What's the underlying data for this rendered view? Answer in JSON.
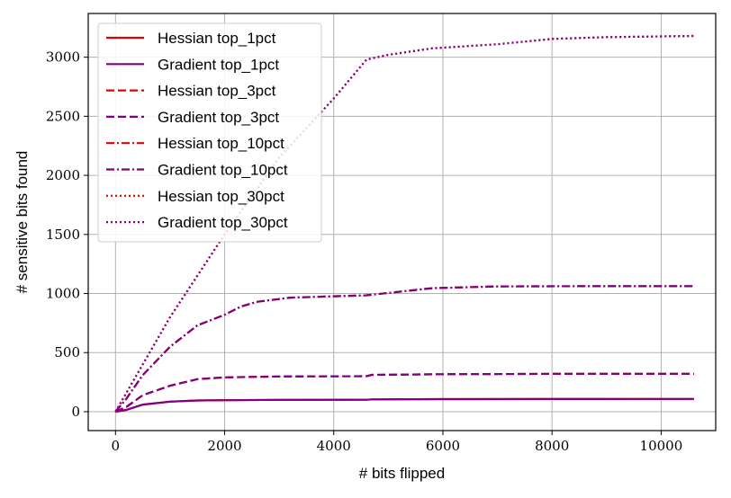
{
  "chart_data": {
    "type": "line",
    "title": "",
    "xlabel": "# bits flipped",
    "ylabel": "# sensitive bits found",
    "xlim": [
      -500,
      11000
    ],
    "ylim": [
      -160,
      3370
    ],
    "xticks": [
      0,
      2000,
      4000,
      6000,
      8000,
      10000
    ],
    "xtick_labels": [
      "0",
      "2000",
      "4000",
      "6000",
      "8000",
      "10000"
    ],
    "yticks": [
      0,
      500,
      1000,
      1500,
      2000,
      2500,
      3000
    ],
    "ytick_labels": [
      "0",
      "500",
      "1000",
      "1500",
      "2000",
      "2500",
      "3000"
    ],
    "grid": true,
    "legend_position": "top-left",
    "colors": {
      "hessian": "#e00000",
      "gradient": "#800080"
    },
    "series": [
      {
        "name": "Hessian top_1pct",
        "color": "#e00000",
        "dash": "solid",
        "points": [
          [
            0,
            0
          ],
          [
            200,
            15
          ],
          [
            500,
            60
          ],
          [
            1000,
            85
          ],
          [
            1500,
            95
          ],
          [
            2000,
            97
          ],
          [
            3000,
            100
          ],
          [
            4600,
            101
          ],
          [
            4700,
            104
          ],
          [
            6000,
            106
          ],
          [
            8000,
            107
          ],
          [
            10600,
            108
          ]
        ]
      },
      {
        "name": "Gradient top_1pct",
        "color": "#800080",
        "dash": "solid",
        "points": [
          [
            0,
            0
          ],
          [
            200,
            15
          ],
          [
            500,
            60
          ],
          [
            1000,
            85
          ],
          [
            1500,
            95
          ],
          [
            2000,
            97
          ],
          [
            3000,
            100
          ],
          [
            4600,
            101
          ],
          [
            4700,
            104
          ],
          [
            6000,
            106
          ],
          [
            8000,
            107
          ],
          [
            10600,
            108
          ]
        ]
      },
      {
        "name": "Hessian top_3pct",
        "color": "#e00000",
        "dash": "dashed",
        "points": [
          [
            0,
            0
          ],
          [
            200,
            40
          ],
          [
            500,
            140
          ],
          [
            1000,
            220
          ],
          [
            1500,
            275
          ],
          [
            2000,
            290
          ],
          [
            3000,
            298
          ],
          [
            4600,
            300
          ],
          [
            4700,
            312
          ],
          [
            6000,
            317
          ],
          [
            8000,
            320
          ],
          [
            10600,
            320
          ]
        ]
      },
      {
        "name": "Gradient top_3pct",
        "color": "#800080",
        "dash": "dashed",
        "points": [
          [
            0,
            0
          ],
          [
            200,
            40
          ],
          [
            500,
            140
          ],
          [
            1000,
            220
          ],
          [
            1500,
            275
          ],
          [
            2000,
            290
          ],
          [
            3000,
            298
          ],
          [
            4600,
            300
          ],
          [
            4700,
            312
          ],
          [
            6000,
            317
          ],
          [
            8000,
            320
          ],
          [
            10600,
            320
          ]
        ]
      },
      {
        "name": "Hessian top_10pct",
        "color": "#e00000",
        "dash": "dashdot",
        "points": [
          [
            0,
            0
          ],
          [
            200,
            110
          ],
          [
            500,
            310
          ],
          [
            1000,
            550
          ],
          [
            1500,
            730
          ],
          [
            2000,
            820
          ],
          [
            2300,
            890
          ],
          [
            2600,
            930
          ],
          [
            3200,
            965
          ],
          [
            4600,
            985
          ],
          [
            5000,
            1005
          ],
          [
            5800,
            1045
          ],
          [
            7000,
            1060
          ],
          [
            8500,
            1062
          ],
          [
            10600,
            1062
          ]
        ]
      },
      {
        "name": "Gradient top_10pct",
        "color": "#800080",
        "dash": "dashdot",
        "points": [
          [
            0,
            0
          ],
          [
            200,
            110
          ],
          [
            500,
            310
          ],
          [
            1000,
            550
          ],
          [
            1500,
            730
          ],
          [
            2000,
            820
          ],
          [
            2300,
            890
          ],
          [
            2600,
            930
          ],
          [
            3200,
            965
          ],
          [
            4600,
            985
          ],
          [
            5000,
            1005
          ],
          [
            5800,
            1045
          ],
          [
            7000,
            1060
          ],
          [
            8500,
            1062
          ],
          [
            10600,
            1062
          ]
        ]
      },
      {
        "name": "Hessian top_30pct",
        "color": "#e00000",
        "dash": "dotted",
        "points": [
          [
            0,
            0
          ],
          [
            500,
            400
          ],
          [
            1000,
            800
          ],
          [
            2000,
            1500
          ],
          [
            3000,
            2150
          ],
          [
            4000,
            2650
          ],
          [
            4600,
            2980
          ],
          [
            5000,
            3020
          ],
          [
            5800,
            3075
          ],
          [
            7000,
            3110
          ],
          [
            8000,
            3155
          ],
          [
            9000,
            3170
          ],
          [
            10600,
            3180
          ]
        ]
      },
      {
        "name": "Gradient top_30pct",
        "color": "#800080",
        "dash": "dotted",
        "points": [
          [
            0,
            0
          ],
          [
            500,
            400
          ],
          [
            1000,
            800
          ],
          [
            2000,
            1500
          ],
          [
            3000,
            2150
          ],
          [
            4000,
            2650
          ],
          [
            4600,
            2980
          ],
          [
            5000,
            3020
          ],
          [
            5800,
            3075
          ],
          [
            7000,
            3110
          ],
          [
            8000,
            3155
          ],
          [
            9000,
            3170
          ],
          [
            10600,
            3180
          ]
        ]
      }
    ]
  }
}
